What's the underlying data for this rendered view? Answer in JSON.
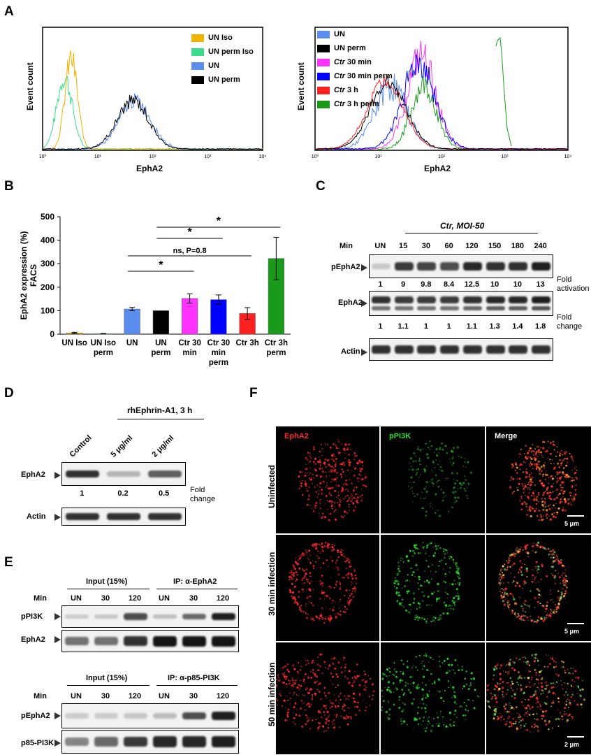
{
  "panels": {
    "A": "A",
    "B": "B",
    "C": "C",
    "D": "D",
    "E": "E",
    "F": "F"
  },
  "panelA": {
    "left": {
      "ylabel": "Event count",
      "xlabel": "EphA2",
      "legend": [
        {
          "label": "UN Iso",
          "color": "#f0b400"
        },
        {
          "label": "UN perm Iso",
          "color": "#3ddc8c"
        },
        {
          "label": "UN",
          "color": "#5b8def"
        },
        {
          "label": "UN perm",
          "color": "#000000"
        }
      ],
      "ticks": [
        "10⁰",
        "10¹",
        "10²",
        "10³",
        "10⁴"
      ]
    },
    "right": {
      "ylabel": "Event count",
      "xlabel": "EphA2",
      "legend": [
        {
          "label": "UN",
          "color": "#5b8def"
        },
        {
          "label": "UN perm",
          "color": "#000000"
        },
        {
          "label": "Ctr 30 min",
          "color": "#ff33ff"
        },
        {
          "label": "Ctr 30 min perm",
          "color": "#0000ff"
        },
        {
          "label": "Ctr 3 h",
          "color": "#ff2020"
        },
        {
          "label": "Ctr 3 h perm",
          "color": "#1a9a1a"
        }
      ],
      "ticks": [
        "10⁰",
        "10¹",
        "10²",
        "10³",
        "10⁴"
      ]
    }
  },
  "chart_data": {
    "type": "bar",
    "ylabel": "EphA2 expression (%) FACS",
    "ylim": [
      0,
      500
    ],
    "yticks": [
      "0",
      "100",
      "200",
      "300",
      "400",
      "500"
    ],
    "categories": [
      "UN Iso",
      "UN Iso perm",
      "UN",
      "UN perm",
      "Ctr 30 min",
      "Ctr 30 min perm",
      "Ctr 3h",
      "Ctr 3h perm"
    ],
    "values": [
      5,
      2,
      107,
      100,
      152,
      147,
      88,
      322
    ],
    "errors": [
      3,
      1,
      7,
      0,
      20,
      20,
      25,
      90
    ],
    "colors": [
      "#f0b400",
      "#3ddc8c",
      "#5b8def",
      "#000000",
      "#ff33ff",
      "#0000ff",
      "#ff2020",
      "#1a9a1a"
    ],
    "annotations": [
      {
        "text": "*",
        "from": 2,
        "to": 4
      },
      {
        "text": "ns, P=0.8",
        "from": 2,
        "to": 6
      },
      {
        "text": "*",
        "from": 3,
        "to": 5
      },
      {
        "text": "*",
        "from": 3,
        "to": 7
      }
    ]
  },
  "panelC": {
    "header": "Ctr, MOI-50",
    "min_label": "Min",
    "lanes": [
      "UN",
      "15",
      "30",
      "60",
      "120",
      "150",
      "180",
      "240"
    ],
    "rows": [
      {
        "label": "pEphA2",
        "values": [
          "1",
          "9",
          "9.8",
          "8.4",
          "12.5",
          "10",
          "10",
          "13"
        ],
        "note": "Fold activation"
      },
      {
        "label": "EphA2",
        "values": [
          "1",
          "1.1",
          "1",
          "1",
          "1.1",
          "1.3",
          "1.4",
          "1.8"
        ],
        "note": "Fold change"
      },
      {
        "label": "Actin"
      }
    ]
  },
  "panelD": {
    "header": "rhEphrin-A1, 3 h",
    "lanes": [
      "Control",
      "5 μg/ml",
      "2 μg/ml"
    ],
    "rows": [
      {
        "label": "EphA2",
        "values": [
          "1",
          "0.2",
          "0.5"
        ],
        "note": "Fold change"
      },
      {
        "label": "Actin"
      }
    ]
  },
  "panelE": {
    "top": {
      "group1": "Input (15%)",
      "group2": "IP: α-EphA2",
      "min_label": "Min",
      "lanes": [
        "UN",
        "30",
        "120",
        "UN",
        "30",
        "120"
      ],
      "rows": [
        "pPI3K",
        "EphA2"
      ]
    },
    "bottom": {
      "group1": "Input (15%)",
      "group2": "IP: α-p85-PI3K",
      "min_label": "Min",
      "lanes": [
        "UN",
        "30",
        "120",
        "UN",
        "30",
        "120"
      ],
      "rows": [
        "pEphA2",
        "p85-PI3K"
      ]
    }
  },
  "panelF": {
    "columns": [
      "EphA2",
      "pPI3K",
      "Merge"
    ],
    "rows": [
      "Uninfected",
      "30 min infection",
      "50 min infection"
    ],
    "scalebars": [
      "5 μm",
      "5 μm",
      "2 μm"
    ]
  }
}
